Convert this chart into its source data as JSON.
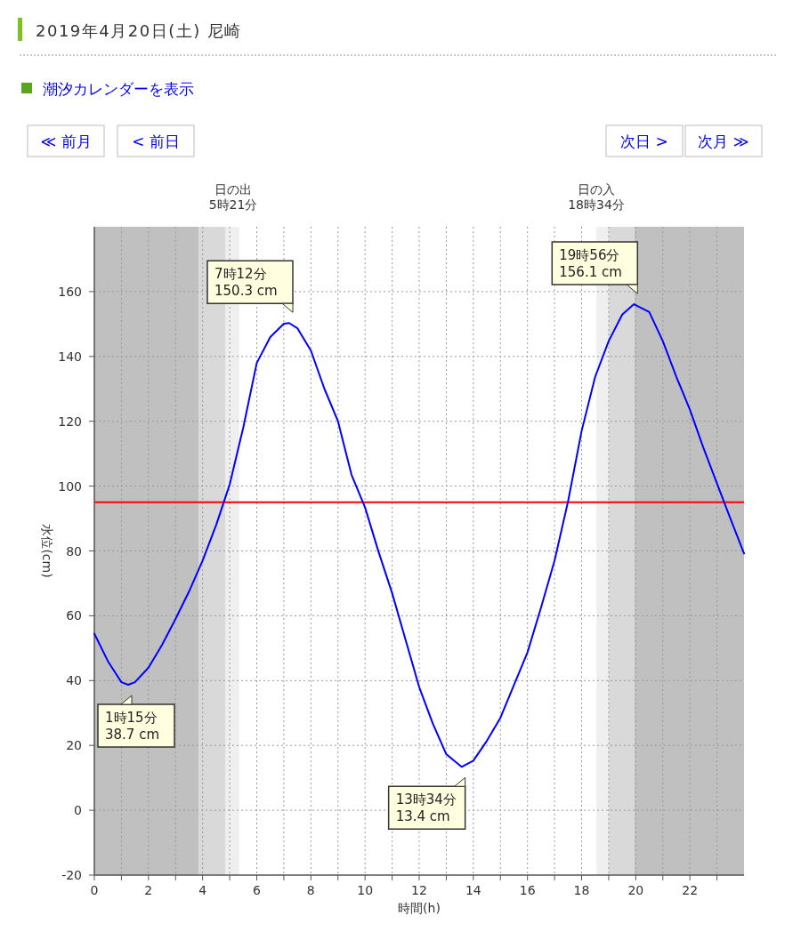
{
  "chart_data": {
    "type": "line",
    "title": "2019年4月20日(土) 尼崎",
    "xlabel": "時間(h)",
    "ylabel": "水位(cm)",
    "x": [
      0,
      0.5,
      1,
      1.25,
      1.5,
      2,
      2.5,
      3,
      3.5,
      4,
      4.5,
      5,
      5.5,
      6,
      6.5,
      7,
      7.2,
      7.5,
      8,
      8.5,
      9,
      9.5,
      10,
      10.5,
      11,
      11.5,
      12,
      12.5,
      13,
      13.567,
      14,
      14.5,
      15,
      15.5,
      16,
      16.5,
      17,
      17.5,
      18,
      18.5,
      19,
      19.5,
      19.933,
      20.5,
      21,
      21.5,
      22,
      22.5,
      23,
      23.5,
      24
    ],
    "values": [
      54.5,
      46,
      39.5,
      38.7,
      39.5,
      44,
      51,
      59,
      67.5,
      77,
      88,
      100.5,
      118,
      138,
      146,
      150.1,
      150.3,
      148.7,
      141.8,
      130,
      120,
      103.5,
      93.4,
      79.7,
      67,
      52.5,
      38,
      26.8,
      17.3,
      13.4,
      15.3,
      21.4,
      28.5,
      38.6,
      48.7,
      62.5,
      77,
      95.3,
      117,
      133.7,
      144.7,
      152.9,
      156.1,
      153.7,
      144.7,
      133.7,
      123.6,
      111.8,
      100.8,
      89.9,
      79.2
    ],
    "color": "#0000ff",
    "xlim": [
      0,
      24
    ],
    "ylim": [
      -20,
      180
    ],
    "xticks": [
      0,
      {
        "value": 1,
        "label": null
      },
      2,
      {
        "value": 3,
        "label": null
      },
      4,
      {
        "value": 5,
        "label": null
      },
      6,
      {
        "value": 7,
        "label": null
      },
      8,
      {
        "value": 9,
        "label": null
      },
      10,
      {
        "value": 11,
        "label": null
      },
      12,
      {
        "value": 13,
        "label": null
      },
      14,
      {
        "value": 15,
        "label": null
      },
      16,
      {
        "value": 17,
        "label": null
      },
      18,
      {
        "value": 19,
        "label": null
      },
      20,
      {
        "value": 21,
        "label": null
      },
      22,
      {
        "value": 23,
        "label": null
      }
    ],
    "yticks": [
      -20,
      0,
      20,
      40,
      60,
      80,
      100,
      120,
      140,
      160
    ],
    "grid": true,
    "ref_lines": [
      {
        "axis": "y",
        "value": 95,
        "color": "#ff0000"
      }
    ],
    "bands": [
      {
        "axis": "x",
        "from": 0,
        "to": 3.85,
        "color": "#c0c0c0"
      },
      {
        "axis": "x",
        "from": 3.85,
        "to": 4.85,
        "color": "#d9d9d9"
      },
      {
        "axis": "x",
        "from": 4.85,
        "to": 5.35,
        "color": "#efefef"
      },
      {
        "axis": "x",
        "from": 18.55,
        "to": 19.0,
        "color": "#efefef"
      },
      {
        "axis": "x",
        "from": 19.0,
        "to": 19.95,
        "color": "#d9d9d9"
      },
      {
        "axis": "x",
        "from": 19.95,
        "to": 24,
        "color": "#c0c0c0"
      }
    ],
    "annotations": [
      "潮汐カレンダーを表示",
      "≪ 前月",
      "< 前日",
      "次日 >",
      "次月 ≫",
      "日の出\n5時21分",
      "日の入\n18時34分",
      {
        "text": "1時15分\n38.7 cm",
        "x": 1.25,
        "y": 38.7
      },
      {
        "text": "7時12分\n150.3 cm",
        "x": 7.2,
        "y": 150.3
      },
      {
        "text": "13時34分\n13.4 cm",
        "x": 13.567,
        "y": 13.4
      },
      {
        "text": "19時56分\n156.1 cm",
        "x": 19.933,
        "y": 156.1
      }
    ]
  }
}
